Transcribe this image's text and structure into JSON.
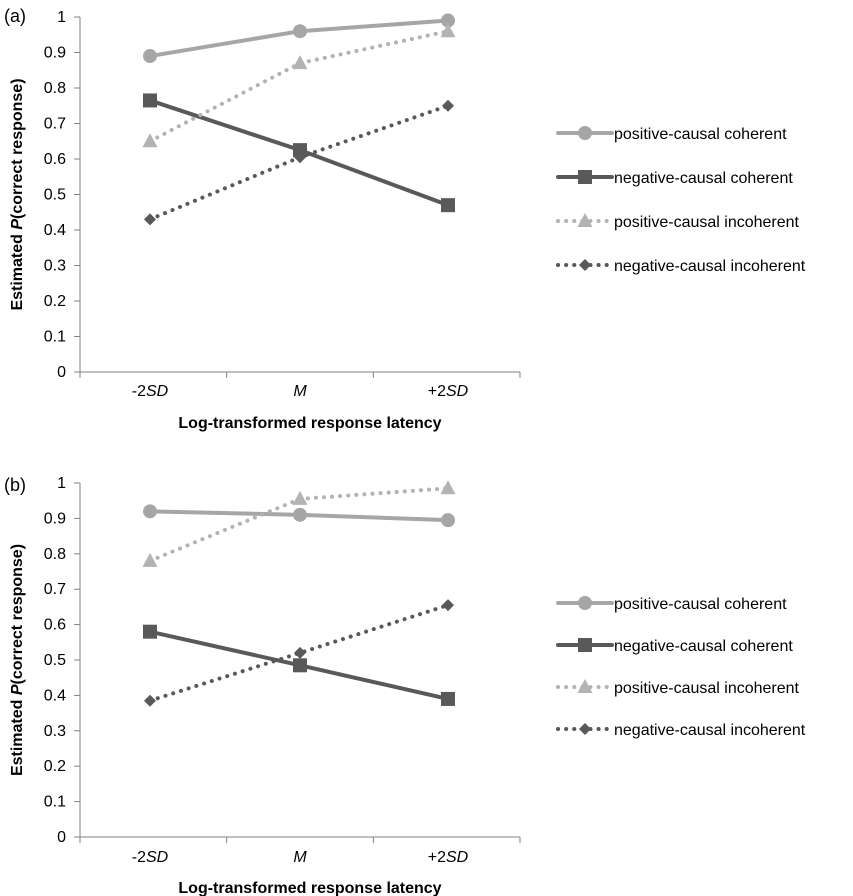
{
  "chart_data": [
    {
      "panel_label": "(a)",
      "type": "line",
      "categories": [
        "-2SD",
        "M",
        "+2SD"
      ],
      "category_parts": [
        {
          "pre": "-2",
          "ital": "SD"
        },
        {
          "pre": "",
          "ital": "M"
        },
        {
          "pre": "+2",
          "ital": "SD"
        }
      ],
      "xlabel": "Log-transformed response latency",
      "ylabel_pre": "Estimated ",
      "ylabel_ital": "P",
      "ylabel_post": "(correct response)",
      "ylim": [
        0,
        1
      ],
      "yticks": [
        "0",
        "0.1",
        "0.2",
        "0.3",
        "0.4",
        "0.5",
        "0.6",
        "0.7",
        "0.8",
        "0.9",
        "1"
      ],
      "series": [
        {
          "name": "positive-causal coherent",
          "values": [
            0.89,
            0.96,
            0.99
          ],
          "color": "#a6a6a6",
          "line": "solid",
          "marker": "circle"
        },
        {
          "name": "negative-causal coherent",
          "values": [
            0.765,
            0.625,
            0.47
          ],
          "color": "#595959",
          "line": "solid",
          "marker": "square"
        },
        {
          "name": "positive-causal incoherent",
          "values": [
            0.65,
            0.87,
            0.96
          ],
          "color": "#b3b3b3",
          "line": "dotted",
          "marker": "triangle"
        },
        {
          "name": "negative-causal incoherent",
          "values": [
            0.43,
            0.605,
            0.75
          ],
          "color": "#595959",
          "line": "dotted",
          "marker": "diamond"
        }
      ]
    },
    {
      "panel_label": "(b)",
      "type": "line",
      "categories": [
        "-2SD",
        "M",
        "+2SD"
      ],
      "category_parts": [
        {
          "pre": "-2",
          "ital": "SD"
        },
        {
          "pre": "",
          "ital": "M"
        },
        {
          "pre": "+2",
          "ital": "SD"
        }
      ],
      "xlabel": "Log-transformed response latency",
      "ylabel_pre": "Estimated ",
      "ylabel_ital": "P",
      "ylabel_post": "(correct response)",
      "ylim": [
        0,
        1
      ],
      "yticks": [
        "0",
        "0.1",
        "0.2",
        "0.3",
        "0.4",
        "0.5",
        "0.6",
        "0.7",
        "0.8",
        "0.9",
        "1"
      ],
      "series": [
        {
          "name": "positive-causal coherent",
          "values": [
            0.92,
            0.91,
            0.895
          ],
          "color": "#a6a6a6",
          "line": "solid",
          "marker": "circle"
        },
        {
          "name": "negative-causal coherent",
          "values": [
            0.58,
            0.485,
            0.39
          ],
          "color": "#595959",
          "line": "solid",
          "marker": "square"
        },
        {
          "name": "positive-causal incoherent",
          "values": [
            0.78,
            0.955,
            0.985
          ],
          "color": "#b3b3b3",
          "line": "dotted",
          "marker": "triangle"
        },
        {
          "name": "negative-causal incoherent",
          "values": [
            0.385,
            0.52,
            0.655
          ],
          "color": "#595959",
          "line": "dotted",
          "marker": "diamond"
        }
      ]
    }
  ]
}
